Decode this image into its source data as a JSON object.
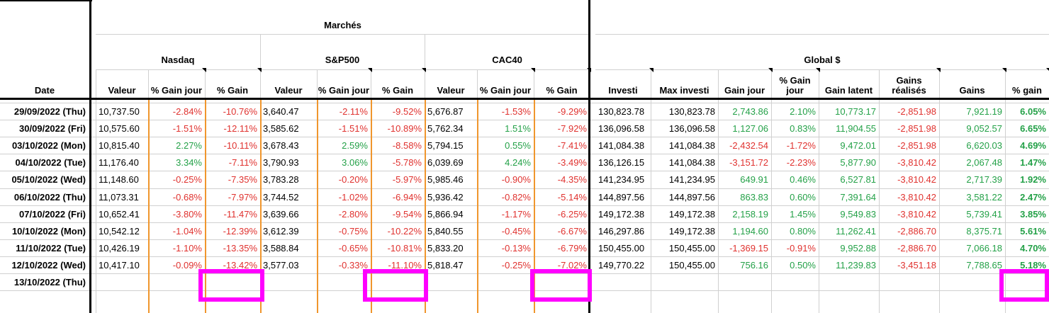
{
  "header": {
    "date_label": "Date",
    "marches_label": "Marchés",
    "global_label": "Global $",
    "groups": [
      {
        "name": "Nasdaq",
        "col_labels": [
          "Valeur",
          "% Gain jour",
          "% Gain"
        ]
      },
      {
        "name": "S&P500",
        "col_labels": [
          "Valeur",
          "% Gain jour",
          "% Gain"
        ]
      },
      {
        "name": "CAC40",
        "col_labels": [
          "Valeur",
          "% Gain jour",
          "% Gain"
        ]
      }
    ],
    "global_cols": [
      "Investi",
      "Max investi",
      "Gain jour",
      "% Gain jour",
      "Gain latent",
      "Gains réalisés",
      "Gains",
      "% gain"
    ]
  },
  "rows": [
    {
      "date": "29/09/2022 (Thu)",
      "cells": [
        "10,737.50",
        "-2.84%",
        "-10.76%",
        "3,640.47",
        "-2.11%",
        "-9.52%",
        "5,676.87",
        "-1.53%",
        "-9.29%",
        "130,823.78",
        "130,823.78",
        "2,743.86",
        "2.10%",
        "10,773.17",
        "-2,851.98",
        "7,921.19",
        "6.05%"
      ]
    },
    {
      "date": "30/09/2022 (Fri)",
      "cells": [
        "10,575.60",
        "-1.51%",
        "-12.11%",
        "3,585.62",
        "-1.51%",
        "-10.89%",
        "5,762.34",
        "1.51%",
        "-7.92%",
        "136,096.58",
        "136,096.58",
        "1,127.06",
        "0.83%",
        "11,904.55",
        "-2,851.98",
        "9,052.57",
        "6.65%"
      ]
    },
    {
      "date": "03/10/2022 (Mon)",
      "cells": [
        "10,815.40",
        "2.27%",
        "-10.11%",
        "3,678.43",
        "2.59%",
        "-8.58%",
        "5,794.15",
        "0.55%",
        "-7.41%",
        "141,084.38",
        "141,084.38",
        "-2,432.54",
        "-1.72%",
        "9,472.01",
        "-2,851.98",
        "6,620.03",
        "4.69%"
      ]
    },
    {
      "date": "04/10/2022 (Tue)",
      "cells": [
        "11,176.40",
        "3.34%",
        "-7.11%",
        "3,790.93",
        "3.06%",
        "-5.78%",
        "6,039.69",
        "4.24%",
        "-3.49%",
        "136,126.15",
        "141,084.38",
        "-3,151.72",
        "-2.23%",
        "5,877.90",
        "-3,810.42",
        "2,067.48",
        "1.47%"
      ]
    },
    {
      "date": "05/10/2022 (Wed)",
      "cells": [
        "11,148.60",
        "-0.25%",
        "-7.35%",
        "3,783.28",
        "-0.20%",
        "-5.97%",
        "5,985.46",
        "-0.90%",
        "-4.35%",
        "141,234.95",
        "141,234.95",
        "649.91",
        "0.46%",
        "6,527.81",
        "-3,810.42",
        "2,717.39",
        "1.92%"
      ]
    },
    {
      "date": "06/10/2022 (Thu)",
      "cells": [
        "11,073.31",
        "-0.68%",
        "-7.97%",
        "3,744.52",
        "-1.02%",
        "-6.94%",
        "5,936.42",
        "-0.82%",
        "-5.14%",
        "144,897.56",
        "144,897.56",
        "863.83",
        "0.60%",
        "7,391.64",
        "-3,810.42",
        "3,581.22",
        "2.47%"
      ]
    },
    {
      "date": "07/10/2022 (Fri)",
      "cells": [
        "10,652.41",
        "-3.80%",
        "-11.47%",
        "3,639.66",
        "-2.80%",
        "-9.54%",
        "5,866.94",
        "-1.17%",
        "-6.25%",
        "149,172.38",
        "149,172.38",
        "2,158.19",
        "1.45%",
        "9,549.83",
        "-3,810.42",
        "5,739.41",
        "3.85%"
      ]
    },
    {
      "date": "10/10/2022 (Mon)",
      "cells": [
        "10,542.12",
        "-1.04%",
        "-12.39%",
        "3,612.39",
        "-0.75%",
        "-10.22%",
        "5,840.55",
        "-0.45%",
        "-6.67%",
        "146,297.86",
        "149,172.38",
        "1,194.60",
        "0.80%",
        "11,262.41",
        "-2,886.70",
        "8,375.71",
        "5.61%"
      ]
    },
    {
      "date": "11/10/2022 (Tue)",
      "cells": [
        "10,426.19",
        "-1.10%",
        "-13.35%",
        "3,588.84",
        "-0.65%",
        "-10.81%",
        "5,833.20",
        "-0.13%",
        "-6.79%",
        "150,455.00",
        "150,455.00",
        "-1,369.15",
        "-0.91%",
        "9,952.88",
        "-2,886.70",
        "7,066.18",
        "4.70%"
      ]
    },
    {
      "date": "12/10/2022 (Wed)",
      "cells": [
        "10,417.10",
        "-0.09%",
        "-13.42%",
        "3,577.03",
        "-0.33%",
        "-11.10%",
        "5,818.47",
        "-0.25%",
        "-7.02%",
        "149,770.22",
        "150,455.00",
        "756.16",
        "0.50%",
        "11,239.83",
        "-3,451.18",
        "7,788.65",
        "5.18%"
      ]
    },
    {
      "date": "13/10/2022 (Thu)",
      "cells": [
        "",
        "",
        "",
        "",
        "",
        "",
        "",
        "",
        "",
        "",
        "",
        "",
        "",
        "",
        "",
        "",
        ""
      ]
    }
  ],
  "colors": {
    "negative": "#e0322f",
    "positive": "#24a148",
    "highlight": "#ff00ff",
    "group_border": "#f0962d"
  }
}
